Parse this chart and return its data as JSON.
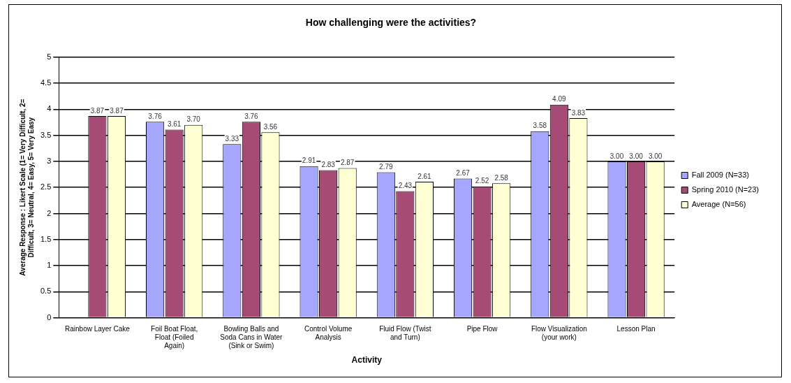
{
  "chart_data": {
    "type": "bar",
    "title": "How challenging were the activities?",
    "xlabel": "Activity",
    "ylabel": "Average Response : Likert Scale (1= Very Difficult, 2= Difficult, 3= Neutral, 4= Easy, 5= Very Easy",
    "categories": [
      "Rainbow Layer Cake",
      "Foil Boat Float, Float (Foiled Again)",
      "Bowling Balls and Soda Cans in Water (Sink or Swim)",
      "Control Volume Analysis",
      "Fluid Flow (Twist and Turn)",
      "Pipe Flow",
      "Flow Visualization (your work)",
      "Lesson Plan"
    ],
    "series": [
      {
        "name": "Fall 2009 (N=33)",
        "color": "#a6a6ff",
        "values": [
          null,
          3.76,
          3.33,
          2.91,
          2.79,
          2.67,
          3.58,
          3.0
        ],
        "value_labels": [
          null,
          "3.76",
          "3.33",
          "2.91",
          "2.79",
          "2.67",
          "3.58",
          "3.00"
        ]
      },
      {
        "name": "Spring 2010 (N=23)",
        "color": "#a64a76",
        "values": [
          3.87,
          3.61,
          3.76,
          2.83,
          2.43,
          2.52,
          4.09,
          3.0
        ],
        "value_labels": [
          "3.87",
          "3.61",
          "3.76",
          "2.83",
          "2.43",
          "2.52",
          "4.09",
          "3.00"
        ]
      },
      {
        "name": "Average (N=56)",
        "color": "#ffffd4",
        "values": [
          3.87,
          3.7,
          3.56,
          2.87,
          2.61,
          2.58,
          3.83,
          3.0
        ],
        "value_labels": [
          "3.87",
          "3.70",
          "3.56",
          "2.87",
          "2.61",
          "2.58",
          "3.83",
          "3.00"
        ]
      }
    ],
    "ylim": [
      0,
      5
    ],
    "yticks": [
      0,
      0.5,
      1,
      1.5,
      2,
      2.5,
      3,
      3.5,
      4,
      4.5,
      5
    ],
    "grid": "y",
    "legend": "right"
  }
}
